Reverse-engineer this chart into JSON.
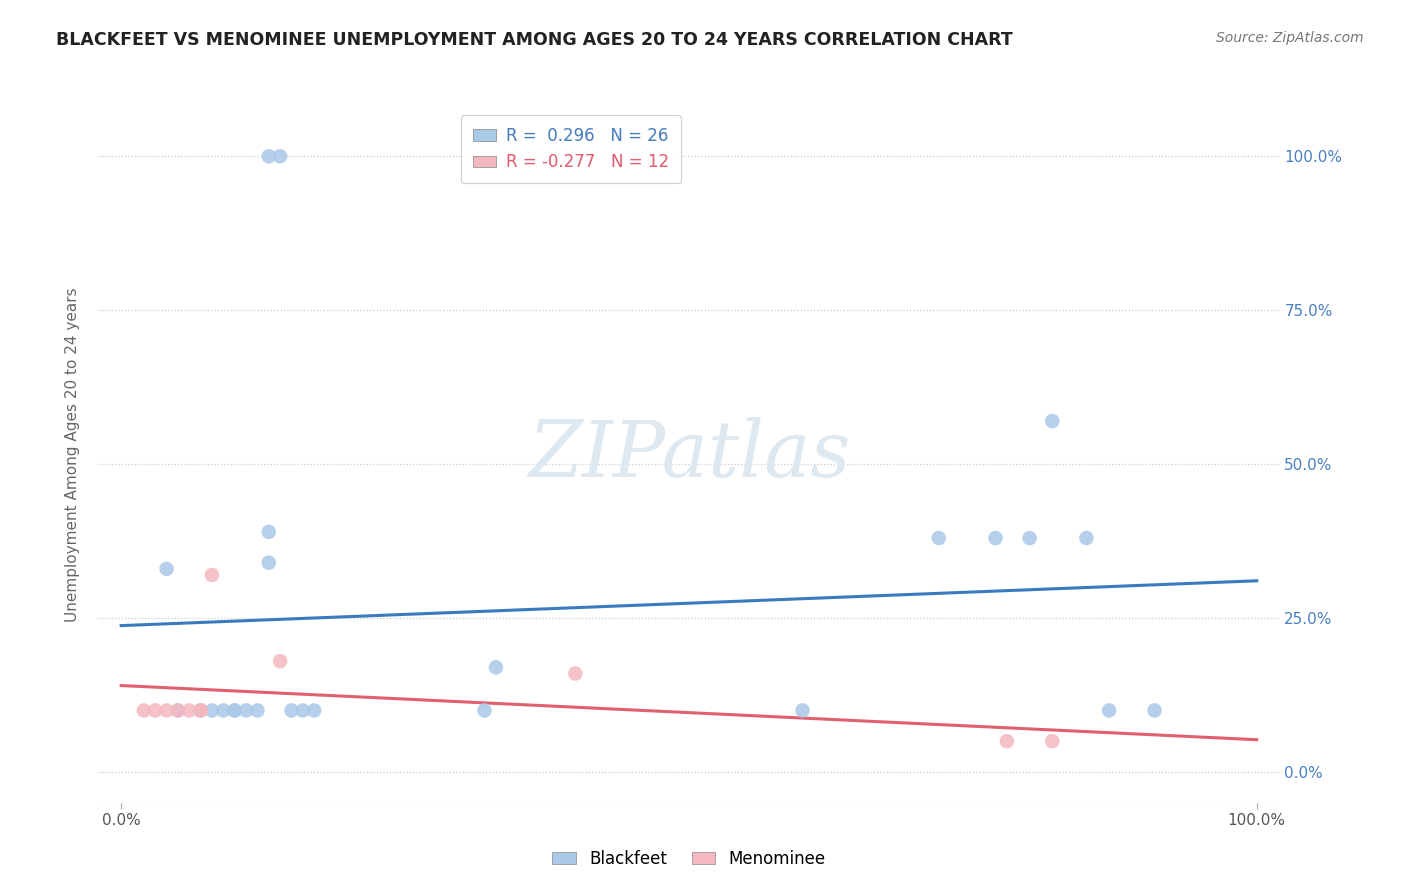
{
  "title": "BLACKFEET VS MENOMINEE UNEMPLOYMENT AMONG AGES 20 TO 24 YEARS CORRELATION CHART",
  "source": "Source: ZipAtlas.com",
  "ylabel": "Unemployment Among Ages 20 to 24 years",
  "xlim": [
    -0.02,
    1.02
  ],
  "ylim": [
    -0.05,
    1.08
  ],
  "ytick_vals": [
    0.0,
    0.25,
    0.5,
    0.75,
    1.0
  ],
  "xtick_vals": [
    0.0,
    1.0
  ],
  "legend_labels": [
    "Blackfeet",
    "Menominee"
  ],
  "blackfeet_R": 0.296,
  "blackfeet_N": 26,
  "menominee_R": -0.277,
  "menominee_N": 12,
  "blackfeet_color": "#aac8e8",
  "menominee_color": "#f4b8c0",
  "blackfeet_line_color": "#3a7bbf",
  "menominee_line_color": "#e06070",
  "blackfeet_x": [
    0.04,
    0.13,
    0.13,
    0.05,
    0.07,
    0.08,
    0.09,
    0.1,
    0.1,
    0.11,
    0.12,
    0.13,
    0.14,
    0.15,
    0.16,
    0.17,
    0.32,
    0.33,
    0.6,
    0.72,
    0.77,
    0.8,
    0.82,
    0.85,
    0.87,
    0.91
  ],
  "blackfeet_y": [
    0.33,
    0.34,
    0.39,
    0.1,
    0.1,
    0.1,
    0.1,
    0.1,
    0.1,
    0.1,
    0.1,
    1.0,
    1.0,
    0.1,
    0.1,
    0.1,
    0.1,
    0.17,
    0.1,
    0.38,
    0.38,
    0.38,
    0.57,
    0.38,
    0.1,
    0.1
  ],
  "menominee_x": [
    0.02,
    0.03,
    0.04,
    0.05,
    0.06,
    0.07,
    0.07,
    0.08,
    0.14,
    0.4,
    0.78,
    0.82
  ],
  "menominee_y": [
    0.1,
    0.1,
    0.1,
    0.1,
    0.1,
    0.1,
    0.1,
    0.32,
    0.18,
    0.16,
    0.05,
    0.05
  ],
  "background_color": "#ffffff",
  "grid_color": "#cccccc",
  "watermark_color": "#dde8f0",
  "marker_size": 110
}
